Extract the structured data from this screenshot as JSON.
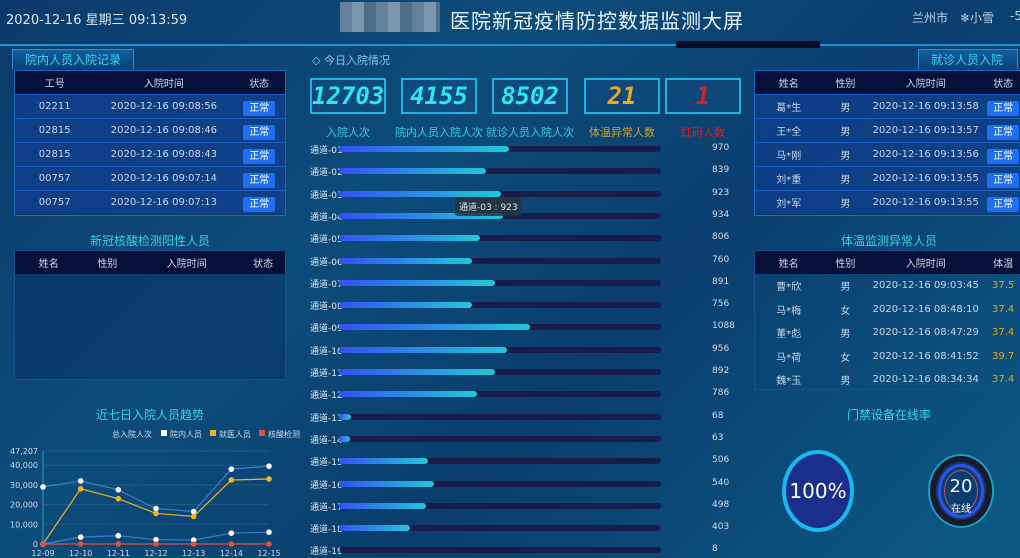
{
  "header": {
    "datetime": "2020-12-16 星期三 09:13:59",
    "title": "医院新冠疫情防控数据监测大屏",
    "city": "兰州市",
    "weather": "❄小雪",
    "temperature": "-5"
  },
  "staff_records": {
    "title": "院内人员入院记录",
    "columns": [
      "工号",
      "入院时间",
      "状态"
    ],
    "rows": [
      [
        "02211",
        "2020-12-16 09:08:56",
        "正常"
      ],
      [
        "02815",
        "2020-12-16 09:08:46",
        "正常"
      ],
      [
        "02815",
        "2020-12-16 09:08:43",
        "正常"
      ],
      [
        "00757",
        "2020-12-16 09:07:14",
        "正常"
      ],
      [
        "00757",
        "2020-12-16 09:07:13",
        "正常"
      ]
    ]
  },
  "positive": {
    "title": "新冠核酸检测阳性人员",
    "columns": [
      "姓名",
      "性别",
      "入院时间",
      "状态"
    ]
  },
  "today": {
    "title": "◇ 今日入院情况",
    "stats": [
      {
        "value": "12703",
        "label": "入院人次",
        "color": "#2ee6f0"
      },
      {
        "value": "4155",
        "label": "院内人员入院人次",
        "color": "#2ee6f0"
      },
      {
        "value": "8502",
        "label": "就诊人员入院人次",
        "color": "#2ee6f0"
      },
      {
        "value": "21",
        "label": "体温异常人数",
        "color": "#f0a818"
      },
      {
        "value": "1",
        "label": "红码人数",
        "color": "#e02020"
      }
    ],
    "tooltip": "通道-03 : 923",
    "channels": [
      {
        "name": "通道-01",
        "value": 970
      },
      {
        "name": "通道-02",
        "value": 839
      },
      {
        "name": "通道-03",
        "value": 923
      },
      {
        "name": "通道-04",
        "value": 934
      },
      {
        "name": "通道-05",
        "value": 806
      },
      {
        "name": "通道-06",
        "value": 760
      },
      {
        "name": "通道-07",
        "value": 891
      },
      {
        "name": "通道-08",
        "value": 756
      },
      {
        "name": "通道-09",
        "value": 1088
      },
      {
        "name": "通道-10",
        "value": 956
      },
      {
        "name": "通道-11",
        "value": 892
      },
      {
        "name": "通道-12",
        "value": 786
      },
      {
        "name": "通道-13",
        "value": 68
      },
      {
        "name": "通道-14",
        "value": 63
      },
      {
        "name": "通道-15",
        "value": 506
      },
      {
        "name": "通道-16",
        "value": 540
      },
      {
        "name": "通道-17",
        "value": 498
      },
      {
        "name": "通道-18",
        "value": 403
      },
      {
        "name": "通道-19",
        "value": 8
      }
    ]
  },
  "patients": {
    "title": "就诊人员入院记录",
    "columns": [
      "姓名",
      "性别",
      "入院时间",
      "状态"
    ],
    "rows": [
      [
        "葛*生",
        "男",
        "2020-12-16 09:13:58",
        "正常"
      ],
      [
        "王*全",
        "男",
        "2020-12-16 09:13:57",
        "正常"
      ],
      [
        "马*刚",
        "男",
        "2020-12-16 09:13:56",
        "正常"
      ],
      [
        "刘*重",
        "男",
        "2020-12-16 09:13:55",
        "正常"
      ],
      [
        "刘*军",
        "男",
        "2020-12-16 09:13:55",
        "正常"
      ]
    ]
  },
  "fever": {
    "title": "体温监测异常人员",
    "columns": [
      "姓名",
      "性别",
      "入院时间",
      "体温"
    ],
    "rows": [
      [
        "曹*欣",
        "男",
        "2020-12-16 09:03:45",
        "37.5"
      ],
      [
        "马*梅",
        "女",
        "2020-12-16 08:48:10",
        "37.4"
      ],
      [
        "董*彪",
        "男",
        "2020-12-16 08:47:29",
        "37.4"
      ],
      [
        "马*荷",
        "女",
        "2020-12-16 08:41:52",
        "39.7"
      ],
      [
        "魏*玉",
        "男",
        "2020-12-16 08:34:34",
        "37.4"
      ]
    ]
  },
  "devices": {
    "title": "门禁设备在线率",
    "rate": "100%",
    "online_count": "20",
    "online_label": "在线"
  },
  "chart_data": {
    "type": "line",
    "title": "近七日入院人员趋势",
    "categories": [
      "12-09",
      "12-10",
      "12-11",
      "12-12",
      "12-13",
      "12-14",
      "12-15"
    ],
    "yticks": [
      "0",
      "10,000",
      "20,000",
      "30,000",
      "40,000",
      "47,207"
    ],
    "ylim": [
      0,
      47207
    ],
    "legend_position": "top-right",
    "series": [
      {
        "name": "总入院人次",
        "color": "#3a7fd0",
        "values": [
          29000,
          32000,
          27500,
          18000,
          16500,
          38000,
          39500
        ]
      },
      {
        "name": "院内人员",
        "color": "#ffffff",
        "values": [
          0,
          3500,
          4200,
          2200,
          2000,
          5500,
          6000
        ]
      },
      {
        "name": "就医人员",
        "color": "#f0b428",
        "values": [
          0,
          28000,
          23000,
          15500,
          14000,
          32500,
          33000
        ]
      },
      {
        "name": "核酸检测人次",
        "color": "#e05040",
        "values": [
          0,
          0,
          0,
          0,
          0,
          0,
          0
        ]
      }
    ]
  }
}
